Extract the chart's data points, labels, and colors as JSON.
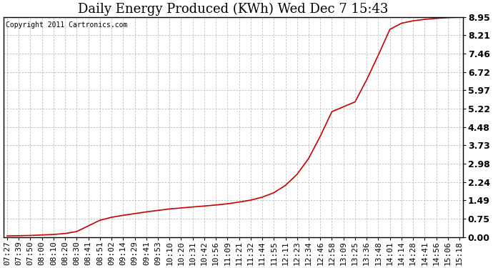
{
  "title": "Daily Energy Produced (KWh) Wed Dec 7 15:43",
  "copyright_text": "Copyright 2011 Cartronics.com",
  "line_color": "#cc0000",
  "background_color": "#ffffff",
  "plot_background": "#ffffff",
  "grid_color": "#bbbbbb",
  "yticks": [
    0.0,
    0.75,
    1.49,
    2.24,
    2.98,
    3.73,
    4.48,
    5.22,
    5.97,
    6.72,
    7.46,
    8.21,
    8.95
  ],
  "xtick_labels": [
    "07:27",
    "07:39",
    "07:50",
    "08:00",
    "08:10",
    "08:20",
    "08:30",
    "08:41",
    "08:51",
    "09:02",
    "09:14",
    "09:29",
    "09:41",
    "09:53",
    "10:10",
    "10:20",
    "10:31",
    "10:42",
    "10:56",
    "11:09",
    "11:21",
    "11:32",
    "11:44",
    "11:55",
    "12:11",
    "12:23",
    "12:34",
    "12:46",
    "12:58",
    "13:09",
    "13:25",
    "13:36",
    "13:48",
    "14:01",
    "14:14",
    "14:28",
    "14:41",
    "14:56",
    "15:06",
    "15:18"
  ],
  "ydata": [
    0.04,
    0.05,
    0.06,
    0.08,
    0.1,
    0.14,
    0.22,
    0.45,
    0.68,
    0.8,
    0.88,
    0.95,
    1.02,
    1.08,
    1.14,
    1.18,
    1.22,
    1.26,
    1.3,
    1.35,
    1.42,
    1.5,
    1.62,
    1.8,
    2.1,
    2.55,
    3.2,
    4.1,
    5.1,
    5.3,
    5.5,
    6.4,
    7.4,
    8.45,
    8.7,
    8.8,
    8.86,
    8.9,
    8.93,
    8.95
  ],
  "ylim_min": 0.0,
  "ylim_max": 8.95,
  "title_fontsize": 13,
  "tick_fontsize": 8,
  "copyright_fontsize": 7,
  "line_width": 1.2
}
